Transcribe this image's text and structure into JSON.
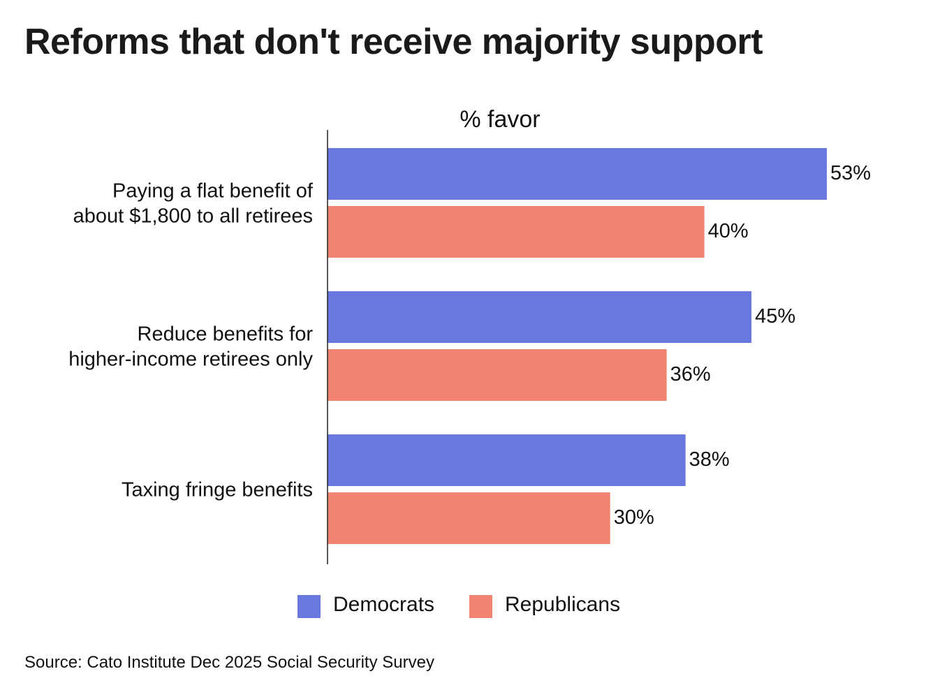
{
  "chart_data": {
    "type": "bar",
    "orientation": "horizontal",
    "title": "Reforms that don't receive majority support",
    "xlabel": "% favor",
    "categories": [
      [
        "Paying a flat benefit of",
        "about $1,800 to all retirees"
      ],
      [
        "Reduce benefits for",
        "higher-income retirees only"
      ],
      [
        "Taxing fringe benefits"
      ]
    ],
    "series": [
      {
        "name": "Democrats",
        "values": [
          53,
          45,
          38
        ],
        "color": "#6978dc"
      },
      {
        "name": "Republicans",
        "values": [
          40,
          36,
          30
        ],
        "color": "#f28472"
      }
    ],
    "value_suffix": "%",
    "xlim": [
      0,
      53
    ],
    "grid": false,
    "legend_position": "bottom",
    "source": "Source: Cato Institute Dec 2025 Social Security Survey"
  }
}
